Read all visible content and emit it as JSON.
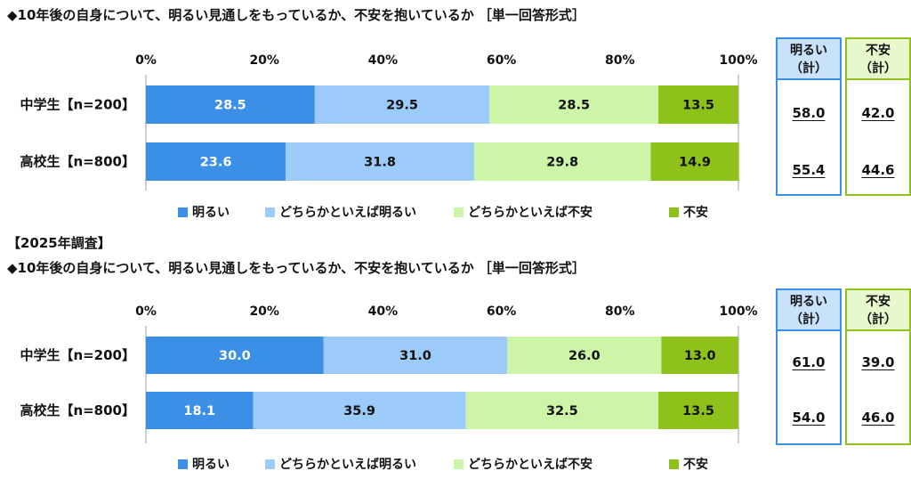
{
  "panels": [
    {
      "year_label": "",
      "title": "◆10年後の自身について、明るい見通しをもっているか、不安を抱いているか ［単一回答形式］",
      "summary": {
        "bright_header": [
          "明るい",
          "（計）"
        ],
        "anxious_header": [
          "不安",
          "（計）"
        ],
        "bright_values": [
          "58.0",
          "55.4"
        ],
        "anxious_values": [
          "42.0",
          "44.6"
        ]
      }
    },
    {
      "year_label": "【2025年調査】",
      "title": "◆10年後の自身について、明るい見通しをもっているか、不安を抱いているか ［単一回答形式］",
      "summary": {
        "bright_header": [
          "明るい",
          "（計）"
        ],
        "anxious_header": [
          "不安",
          "（計）"
        ],
        "bright_values": [
          "61.0",
          "54.0"
        ],
        "anxious_values": [
          "39.0",
          "46.0"
        ]
      }
    }
  ],
  "colors": {
    "bright": "#3b8fe5",
    "somewhat_bright": "#9ccbfa",
    "somewhat_anxious": "#cdf5a8",
    "anxious": "#8ec21a",
    "bright_box_border": "#3b8fe5",
    "bright_box_fill": "#c9e2fb",
    "anxious_box_border": "#8ec21a",
    "anxious_box_fill": "#e6f8cc"
  },
  "chart_data": [
    {
      "type": "bar",
      "orientation": "horizontal-stacked-100",
      "categories": [
        "中学生【n=200】",
        "高校生【n=800】"
      ],
      "series": [
        {
          "name": "明るい",
          "values": [
            28.5,
            23.6
          ]
        },
        {
          "name": "どちらかといえば明るい",
          "values": [
            29.5,
            31.8
          ]
        },
        {
          "name": "どちらかといえば不安",
          "values": [
            28.5,
            29.8
          ]
        },
        {
          "name": "不安",
          "values": [
            13.5,
            14.9
          ]
        }
      ],
      "xticks": [
        "0%",
        "20%",
        "40%",
        "60%",
        "80%",
        "100%"
      ],
      "xlim": [
        0,
        100
      ],
      "legend_position": "bottom",
      "grid": false
    },
    {
      "type": "bar",
      "orientation": "horizontal-stacked-100",
      "categories": [
        "中学生【n=200】",
        "高校生【n=800】"
      ],
      "series": [
        {
          "name": "明るい",
          "values": [
            30.0,
            18.1
          ]
        },
        {
          "name": "どちらかといえば明るい",
          "values": [
            31.0,
            35.9
          ]
        },
        {
          "name": "どちらかといえば不安",
          "values": [
            26.0,
            32.5
          ]
        },
        {
          "name": "不安",
          "values": [
            13.0,
            13.5
          ]
        }
      ],
      "xticks": [
        "0%",
        "20%",
        "40%",
        "60%",
        "80%",
        "100%"
      ],
      "xlim": [
        0,
        100
      ],
      "legend_position": "bottom",
      "grid": false
    }
  ]
}
